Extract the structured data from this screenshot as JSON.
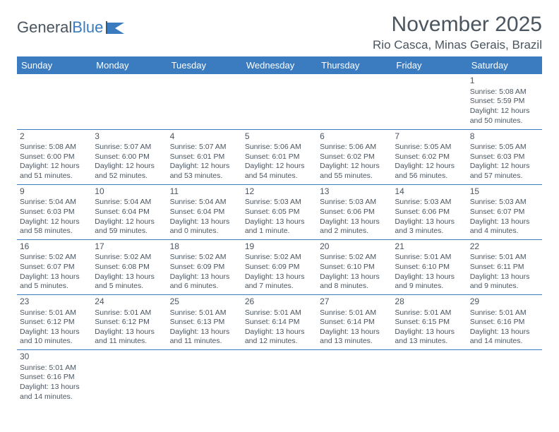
{
  "logo": {
    "text1": "General",
    "text2": "Blue"
  },
  "header": {
    "month": "November 2025",
    "location": "Rio Casca, Minas Gerais, Brazil"
  },
  "colors": {
    "header_bg": "#3b7bbf",
    "header_text": "#ffffff",
    "text": "#4a5560",
    "border": "#3b7bbf"
  },
  "weekdays": [
    "Sunday",
    "Monday",
    "Tuesday",
    "Wednesday",
    "Thursday",
    "Friday",
    "Saturday"
  ],
  "weeks": [
    [
      null,
      null,
      null,
      null,
      null,
      null,
      {
        "d": "1",
        "sr": "Sunrise: 5:08 AM",
        "ss": "Sunset: 5:59 PM",
        "dl": "Daylight: 12 hours and 50 minutes."
      }
    ],
    [
      {
        "d": "2",
        "sr": "Sunrise: 5:08 AM",
        "ss": "Sunset: 6:00 PM",
        "dl": "Daylight: 12 hours and 51 minutes."
      },
      {
        "d": "3",
        "sr": "Sunrise: 5:07 AM",
        "ss": "Sunset: 6:00 PM",
        "dl": "Daylight: 12 hours and 52 minutes."
      },
      {
        "d": "4",
        "sr": "Sunrise: 5:07 AM",
        "ss": "Sunset: 6:01 PM",
        "dl": "Daylight: 12 hours and 53 minutes."
      },
      {
        "d": "5",
        "sr": "Sunrise: 5:06 AM",
        "ss": "Sunset: 6:01 PM",
        "dl": "Daylight: 12 hours and 54 minutes."
      },
      {
        "d": "6",
        "sr": "Sunrise: 5:06 AM",
        "ss": "Sunset: 6:02 PM",
        "dl": "Daylight: 12 hours and 55 minutes."
      },
      {
        "d": "7",
        "sr": "Sunrise: 5:05 AM",
        "ss": "Sunset: 6:02 PM",
        "dl": "Daylight: 12 hours and 56 minutes."
      },
      {
        "d": "8",
        "sr": "Sunrise: 5:05 AM",
        "ss": "Sunset: 6:03 PM",
        "dl": "Daylight: 12 hours and 57 minutes."
      }
    ],
    [
      {
        "d": "9",
        "sr": "Sunrise: 5:04 AM",
        "ss": "Sunset: 6:03 PM",
        "dl": "Daylight: 12 hours and 58 minutes."
      },
      {
        "d": "10",
        "sr": "Sunrise: 5:04 AM",
        "ss": "Sunset: 6:04 PM",
        "dl": "Daylight: 12 hours and 59 minutes."
      },
      {
        "d": "11",
        "sr": "Sunrise: 5:04 AM",
        "ss": "Sunset: 6:04 PM",
        "dl": "Daylight: 13 hours and 0 minutes."
      },
      {
        "d": "12",
        "sr": "Sunrise: 5:03 AM",
        "ss": "Sunset: 6:05 PM",
        "dl": "Daylight: 13 hours and 1 minute."
      },
      {
        "d": "13",
        "sr": "Sunrise: 5:03 AM",
        "ss": "Sunset: 6:06 PM",
        "dl": "Daylight: 13 hours and 2 minutes."
      },
      {
        "d": "14",
        "sr": "Sunrise: 5:03 AM",
        "ss": "Sunset: 6:06 PM",
        "dl": "Daylight: 13 hours and 3 minutes."
      },
      {
        "d": "15",
        "sr": "Sunrise: 5:03 AM",
        "ss": "Sunset: 6:07 PM",
        "dl": "Daylight: 13 hours and 4 minutes."
      }
    ],
    [
      {
        "d": "16",
        "sr": "Sunrise: 5:02 AM",
        "ss": "Sunset: 6:07 PM",
        "dl": "Daylight: 13 hours and 5 minutes."
      },
      {
        "d": "17",
        "sr": "Sunrise: 5:02 AM",
        "ss": "Sunset: 6:08 PM",
        "dl": "Daylight: 13 hours and 5 minutes."
      },
      {
        "d": "18",
        "sr": "Sunrise: 5:02 AM",
        "ss": "Sunset: 6:09 PM",
        "dl": "Daylight: 13 hours and 6 minutes."
      },
      {
        "d": "19",
        "sr": "Sunrise: 5:02 AM",
        "ss": "Sunset: 6:09 PM",
        "dl": "Daylight: 13 hours and 7 minutes."
      },
      {
        "d": "20",
        "sr": "Sunrise: 5:02 AM",
        "ss": "Sunset: 6:10 PM",
        "dl": "Daylight: 13 hours and 8 minutes."
      },
      {
        "d": "21",
        "sr": "Sunrise: 5:01 AM",
        "ss": "Sunset: 6:10 PM",
        "dl": "Daylight: 13 hours and 9 minutes."
      },
      {
        "d": "22",
        "sr": "Sunrise: 5:01 AM",
        "ss": "Sunset: 6:11 PM",
        "dl": "Daylight: 13 hours and 9 minutes."
      }
    ],
    [
      {
        "d": "23",
        "sr": "Sunrise: 5:01 AM",
        "ss": "Sunset: 6:12 PM",
        "dl": "Daylight: 13 hours and 10 minutes."
      },
      {
        "d": "24",
        "sr": "Sunrise: 5:01 AM",
        "ss": "Sunset: 6:12 PM",
        "dl": "Daylight: 13 hours and 11 minutes."
      },
      {
        "d": "25",
        "sr": "Sunrise: 5:01 AM",
        "ss": "Sunset: 6:13 PM",
        "dl": "Daylight: 13 hours and 11 minutes."
      },
      {
        "d": "26",
        "sr": "Sunrise: 5:01 AM",
        "ss": "Sunset: 6:14 PM",
        "dl": "Daylight: 13 hours and 12 minutes."
      },
      {
        "d": "27",
        "sr": "Sunrise: 5:01 AM",
        "ss": "Sunset: 6:14 PM",
        "dl": "Daylight: 13 hours and 13 minutes."
      },
      {
        "d": "28",
        "sr": "Sunrise: 5:01 AM",
        "ss": "Sunset: 6:15 PM",
        "dl": "Daylight: 13 hours and 13 minutes."
      },
      {
        "d": "29",
        "sr": "Sunrise: 5:01 AM",
        "ss": "Sunset: 6:16 PM",
        "dl": "Daylight: 13 hours and 14 minutes."
      }
    ],
    [
      {
        "d": "30",
        "sr": "Sunrise: 5:01 AM",
        "ss": "Sunset: 6:16 PM",
        "dl": "Daylight: 13 hours and 14 minutes."
      },
      null,
      null,
      null,
      null,
      null,
      null
    ]
  ]
}
